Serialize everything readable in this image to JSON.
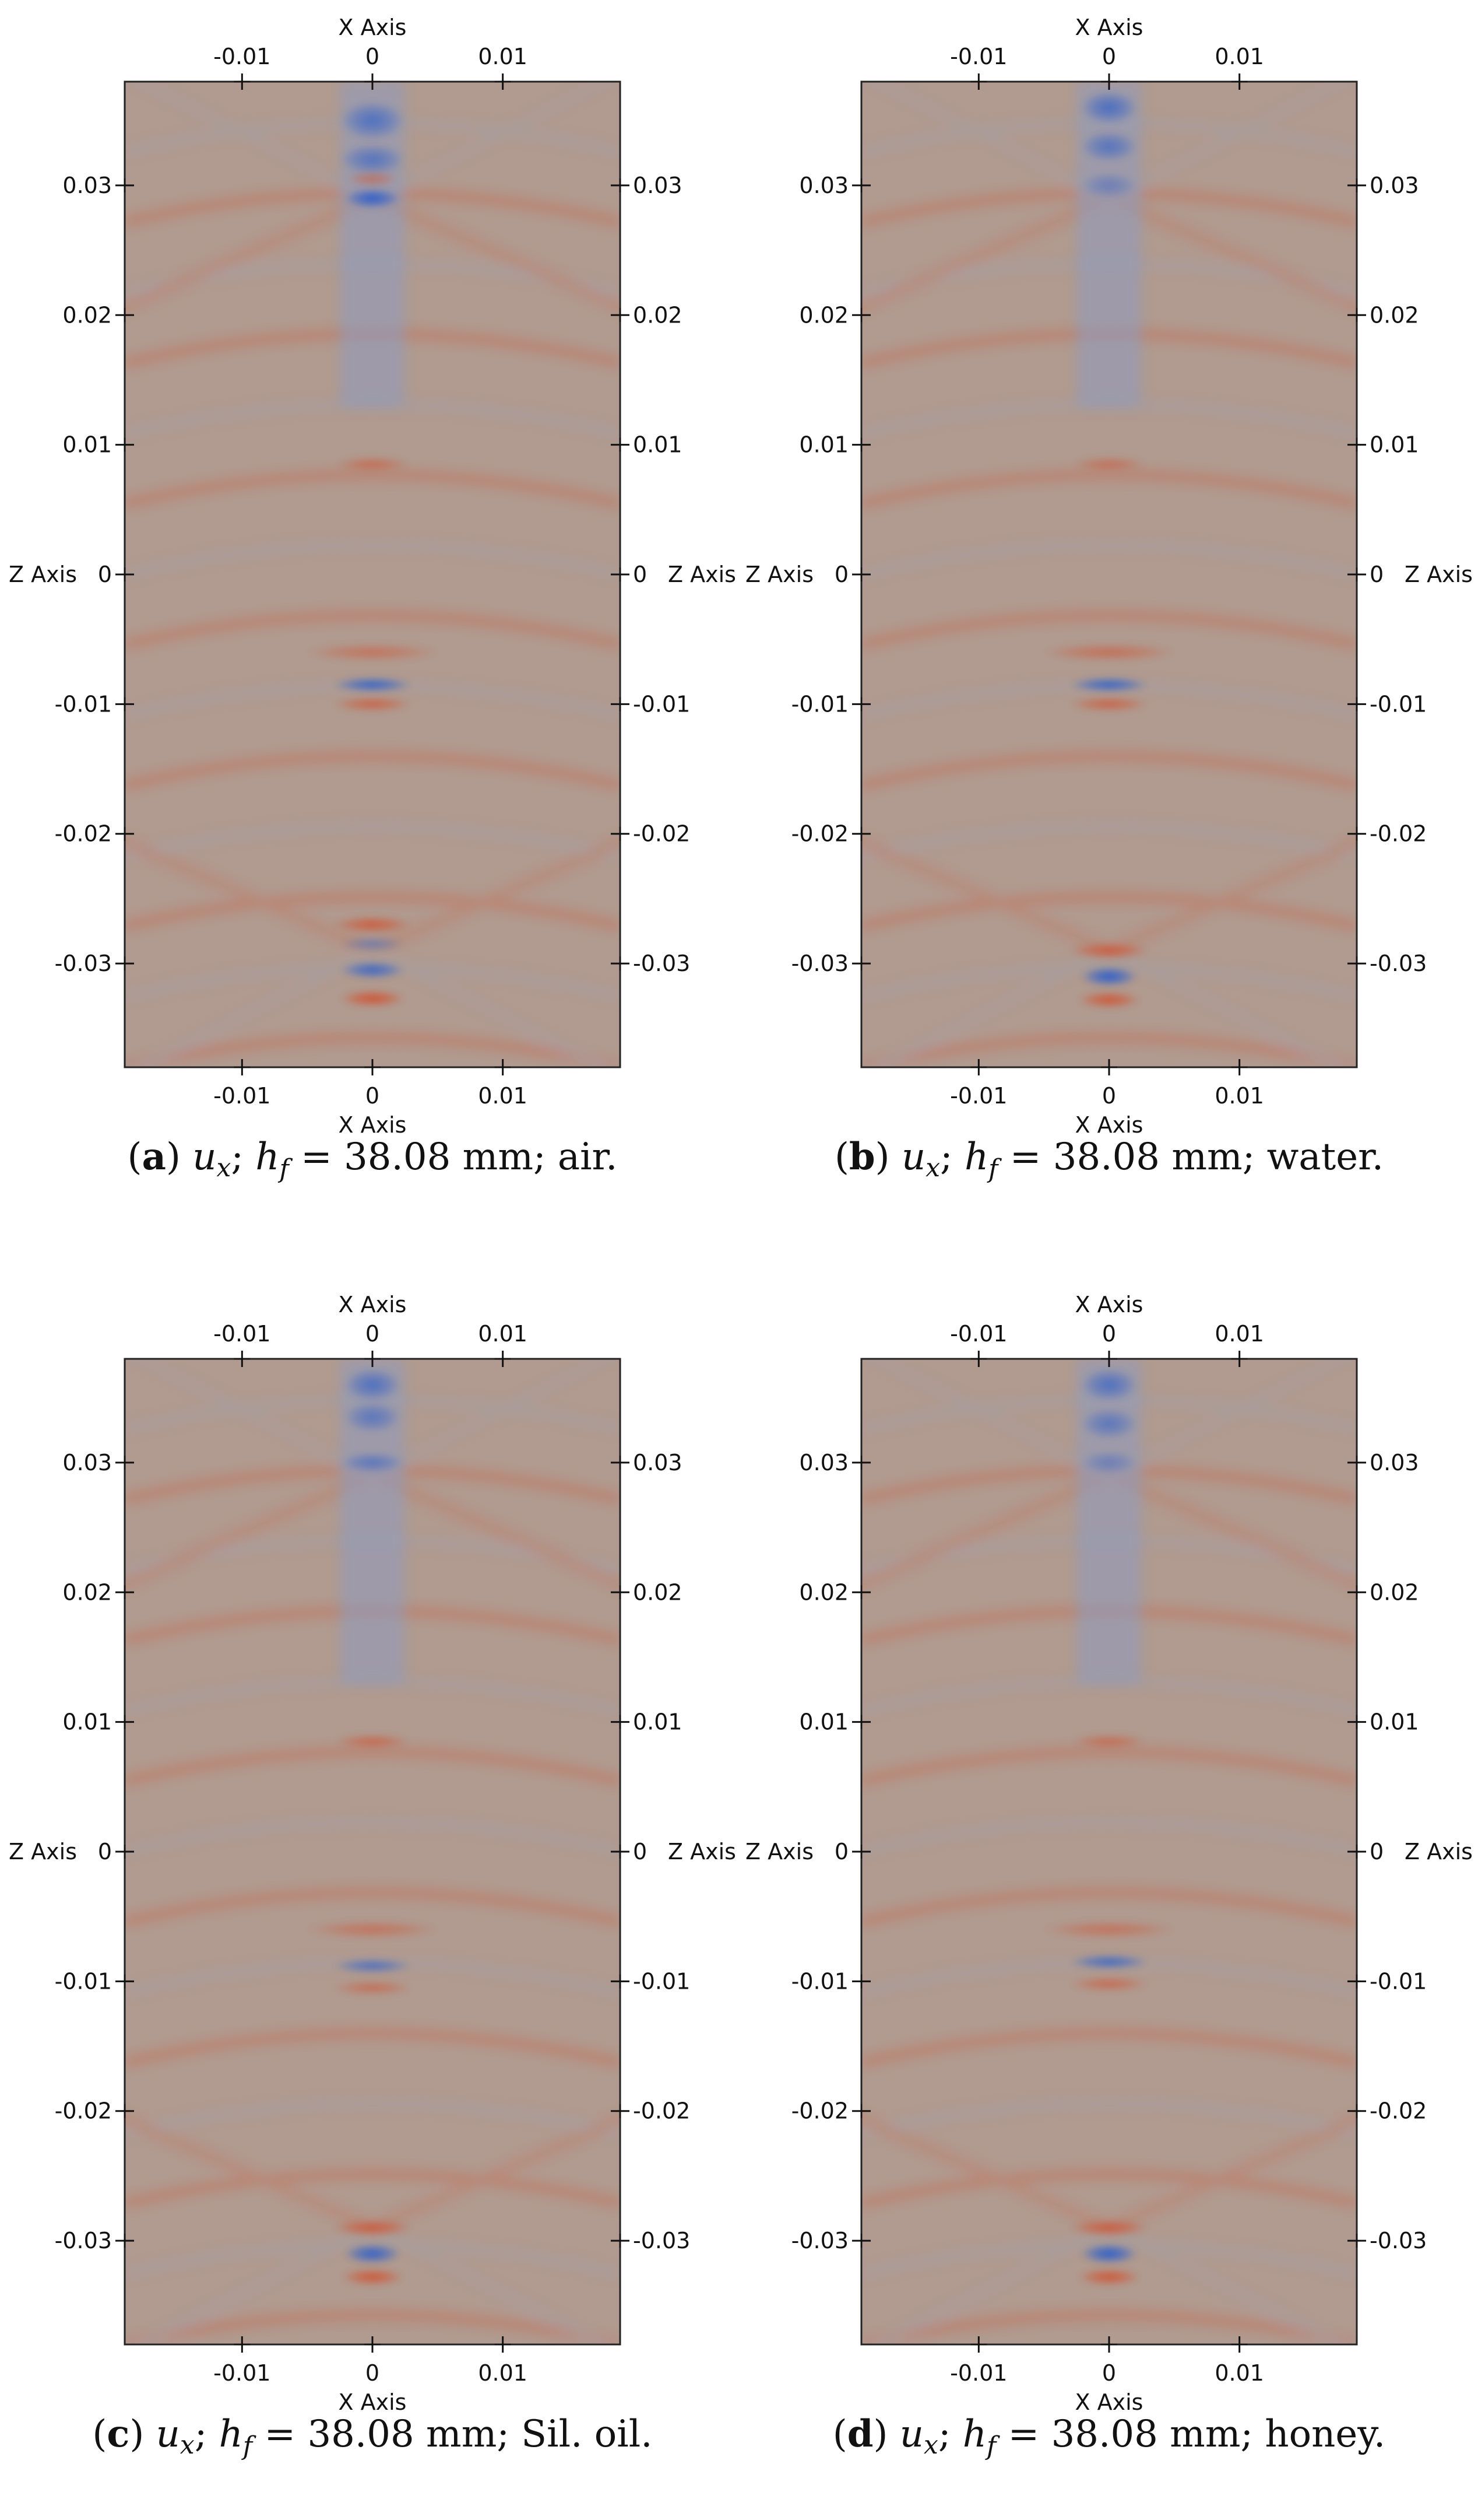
{
  "figure": {
    "colors": {
      "positive": "#d0512e",
      "negative": "#2f5fc9",
      "neutral": "#b19a8f",
      "frame": "#222222"
    },
    "axis_labels": {
      "x": "X Axis",
      "z": "Z Axis"
    }
  },
  "chart_data": [
    {
      "type": "heatmap",
      "field": "u_x",
      "caption": {
        "label": "a",
        "variable": "u",
        "subscript": "x",
        "h_symbol": "h",
        "h_subscript": "f",
        "value": "38.08 mm",
        "medium": "air."
      },
      "xlabel": "X Axis",
      "ylabel": "Z Axis",
      "xlim": [
        -0.019,
        0.019
      ],
      "ylim": [
        -0.038,
        0.038
      ],
      "x_ticks": [
        -0.01,
        0,
        0.01
      ],
      "x_tick_labels": [
        "-0.01",
        "0",
        "0.01"
      ],
      "z_ticks": [
        0.03,
        0.02,
        0.01,
        0,
        -0.01,
        -0.02,
        -0.03
      ],
      "z_tick_labels": [
        "0.03",
        "0.02",
        "0.01",
        "0",
        "-0.01",
        "-0.02",
        "-0.03"
      ],
      "features": [
        {
          "z": 0.035,
          "sign": "negative",
          "amplitude": 0.7,
          "width": 0.0025,
          "height": 0.0015
        },
        {
          "z": 0.032,
          "sign": "negative",
          "amplitude": 0.65,
          "width": 0.0025,
          "height": 0.0012
        },
        {
          "z": 0.029,
          "sign": "negative",
          "amplitude": 1.0,
          "width": 0.0022,
          "height": 0.0008
        },
        {
          "z": 0.0305,
          "sign": "positive",
          "amplitude": 0.5,
          "width": 0.002,
          "height": 0.0006
        },
        {
          "z": 0.0085,
          "sign": "positive",
          "amplitude": 0.55,
          "width": 0.0028,
          "height": 0.0006
        },
        {
          "z": -0.006,
          "sign": "positive",
          "amplitude": 0.5,
          "width": 0.005,
          "height": 0.0007
        },
        {
          "z": -0.0085,
          "sign": "negative",
          "amplitude": 0.9,
          "width": 0.003,
          "height": 0.0006
        },
        {
          "z": -0.01,
          "sign": "positive",
          "amplitude": 0.7,
          "width": 0.003,
          "height": 0.0006
        },
        {
          "z": -0.027,
          "sign": "positive",
          "amplitude": 0.8,
          "width": 0.003,
          "height": 0.0007
        },
        {
          "z": -0.0285,
          "sign": "negative",
          "amplitude": 0.45,
          "width": 0.0025,
          "height": 0.0006
        },
        {
          "z": -0.0305,
          "sign": "negative",
          "amplitude": 0.85,
          "width": 0.0025,
          "height": 0.0007
        },
        {
          "z": -0.0327,
          "sign": "positive",
          "amplitude": 0.9,
          "width": 0.0025,
          "height": 0.0007
        }
      ]
    },
    {
      "type": "heatmap",
      "field": "u_x",
      "caption": {
        "label": "b",
        "variable": "u",
        "subscript": "x",
        "h_symbol": "h",
        "h_subscript": "f",
        "value": "38.08 mm",
        "medium": "water."
      },
      "xlabel": "X Axis",
      "ylabel": "Z Axis",
      "xlim": [
        -0.019,
        0.019
      ],
      "ylim": [
        -0.038,
        0.038
      ],
      "x_ticks": [
        -0.01,
        0,
        0.01
      ],
      "x_tick_labels": [
        "-0.01",
        "0",
        "0.01"
      ],
      "z_ticks": [
        0.03,
        0.02,
        0.01,
        0,
        -0.01,
        -0.02,
        -0.03
      ],
      "z_tick_labels": [
        "0.03",
        "0.02",
        "0.01",
        "0",
        "-0.01",
        "-0.02",
        "-0.03"
      ],
      "features": [
        {
          "z": 0.036,
          "sign": "negative",
          "amplitude": 0.75,
          "width": 0.0022,
          "height": 0.0013
        },
        {
          "z": 0.033,
          "sign": "negative",
          "amplitude": 0.65,
          "width": 0.0022,
          "height": 0.0012
        },
        {
          "z": 0.03,
          "sign": "negative",
          "amplitude": 0.45,
          "width": 0.0022,
          "height": 0.001
        },
        {
          "z": 0.0085,
          "sign": "positive",
          "amplitude": 0.5,
          "width": 0.0028,
          "height": 0.0006
        },
        {
          "z": -0.006,
          "sign": "positive",
          "amplitude": 0.55,
          "width": 0.005,
          "height": 0.0007
        },
        {
          "z": -0.0085,
          "sign": "negative",
          "amplitude": 0.9,
          "width": 0.003,
          "height": 0.0006
        },
        {
          "z": -0.01,
          "sign": "positive",
          "amplitude": 0.7,
          "width": 0.003,
          "height": 0.0006
        },
        {
          "z": -0.029,
          "sign": "positive",
          "amplitude": 0.8,
          "width": 0.003,
          "height": 0.0007
        },
        {
          "z": -0.031,
          "sign": "negative",
          "amplitude": 1.0,
          "width": 0.0022,
          "height": 0.0008
        },
        {
          "z": -0.0328,
          "sign": "positive",
          "amplitude": 0.85,
          "width": 0.0024,
          "height": 0.0007
        }
      ]
    },
    {
      "type": "heatmap",
      "field": "u_x",
      "caption": {
        "label": "c",
        "variable": "u",
        "subscript": "x",
        "h_symbol": "h",
        "h_subscript": "f",
        "value": "38.08 mm",
        "medium": "Sil. oil."
      },
      "xlabel": "X Axis",
      "ylabel": "Z Axis",
      "xlim": [
        -0.019,
        0.019
      ],
      "ylim": [
        -0.038,
        0.038
      ],
      "x_ticks": [
        -0.01,
        0,
        0.01
      ],
      "x_tick_labels": [
        "-0.01",
        "0",
        "0.01"
      ],
      "z_ticks": [
        0.03,
        0.02,
        0.01,
        0,
        -0.01,
        -0.02,
        -0.03
      ],
      "z_tick_labels": [
        "0.03",
        "0.02",
        "0.01",
        "0",
        "-0.01",
        "-0.02",
        "-0.03"
      ],
      "features": [
        {
          "z": 0.036,
          "sign": "negative",
          "amplitude": 0.7,
          "width": 0.0022,
          "height": 0.0013
        },
        {
          "z": 0.0335,
          "sign": "negative",
          "amplitude": 0.6,
          "width": 0.0022,
          "height": 0.0012
        },
        {
          "z": 0.03,
          "sign": "negative",
          "amplitude": 0.6,
          "width": 0.0025,
          "height": 0.0008
        },
        {
          "z": 0.0085,
          "sign": "positive",
          "amplitude": 0.6,
          "width": 0.0028,
          "height": 0.0006
        },
        {
          "z": -0.006,
          "sign": "positive",
          "amplitude": 0.5,
          "width": 0.005,
          "height": 0.0007
        },
        {
          "z": -0.0088,
          "sign": "negative",
          "amplitude": 0.7,
          "width": 0.003,
          "height": 0.0006
        },
        {
          "z": -0.0105,
          "sign": "positive",
          "amplitude": 0.55,
          "width": 0.003,
          "height": 0.0006
        },
        {
          "z": -0.029,
          "sign": "positive",
          "amplitude": 0.8,
          "width": 0.003,
          "height": 0.0007
        },
        {
          "z": -0.031,
          "sign": "negative",
          "amplitude": 0.95,
          "width": 0.0022,
          "height": 0.0008
        },
        {
          "z": -0.0328,
          "sign": "positive",
          "amplitude": 0.85,
          "width": 0.0024,
          "height": 0.0007
        }
      ]
    },
    {
      "type": "heatmap",
      "field": "u_x",
      "caption": {
        "label": "d",
        "variable": "u",
        "subscript": "x",
        "h_symbol": "h",
        "h_subscript": "f",
        "value": "38.08 mm",
        "medium": "honey."
      },
      "xlabel": "X Axis",
      "ylabel": "Z Axis",
      "xlim": [
        -0.019,
        0.019
      ],
      "ylim": [
        -0.038,
        0.038
      ],
      "x_ticks": [
        -0.01,
        0,
        0.01
      ],
      "x_tick_labels": [
        "-0.01",
        "0",
        "0.01"
      ],
      "z_ticks": [
        0.03,
        0.02,
        0.01,
        0,
        -0.01,
        -0.02,
        -0.03
      ],
      "z_tick_labels": [
        "0.03",
        "0.02",
        "0.01",
        "0",
        "-0.01",
        "-0.02",
        "-0.03"
      ],
      "features": [
        {
          "z": 0.036,
          "sign": "negative",
          "amplitude": 0.7,
          "width": 0.0022,
          "height": 0.0013
        },
        {
          "z": 0.033,
          "sign": "negative",
          "amplitude": 0.6,
          "width": 0.0022,
          "height": 0.0012
        },
        {
          "z": 0.03,
          "sign": "negative",
          "amplitude": 0.45,
          "width": 0.0022,
          "height": 0.0009
        },
        {
          "z": 0.0085,
          "sign": "positive",
          "amplitude": 0.55,
          "width": 0.0028,
          "height": 0.0006
        },
        {
          "z": -0.006,
          "sign": "positive",
          "amplitude": 0.5,
          "width": 0.005,
          "height": 0.0007
        },
        {
          "z": -0.0085,
          "sign": "negative",
          "amplitude": 0.8,
          "width": 0.003,
          "height": 0.0006
        },
        {
          "z": -0.0102,
          "sign": "positive",
          "amplitude": 0.6,
          "width": 0.003,
          "height": 0.0006
        },
        {
          "z": -0.029,
          "sign": "positive",
          "amplitude": 0.8,
          "width": 0.003,
          "height": 0.0007
        },
        {
          "z": -0.031,
          "sign": "negative",
          "amplitude": 1.0,
          "width": 0.0022,
          "height": 0.0008
        },
        {
          "z": -0.0328,
          "sign": "positive",
          "amplitude": 0.85,
          "width": 0.0024,
          "height": 0.0007
        }
      ]
    }
  ]
}
